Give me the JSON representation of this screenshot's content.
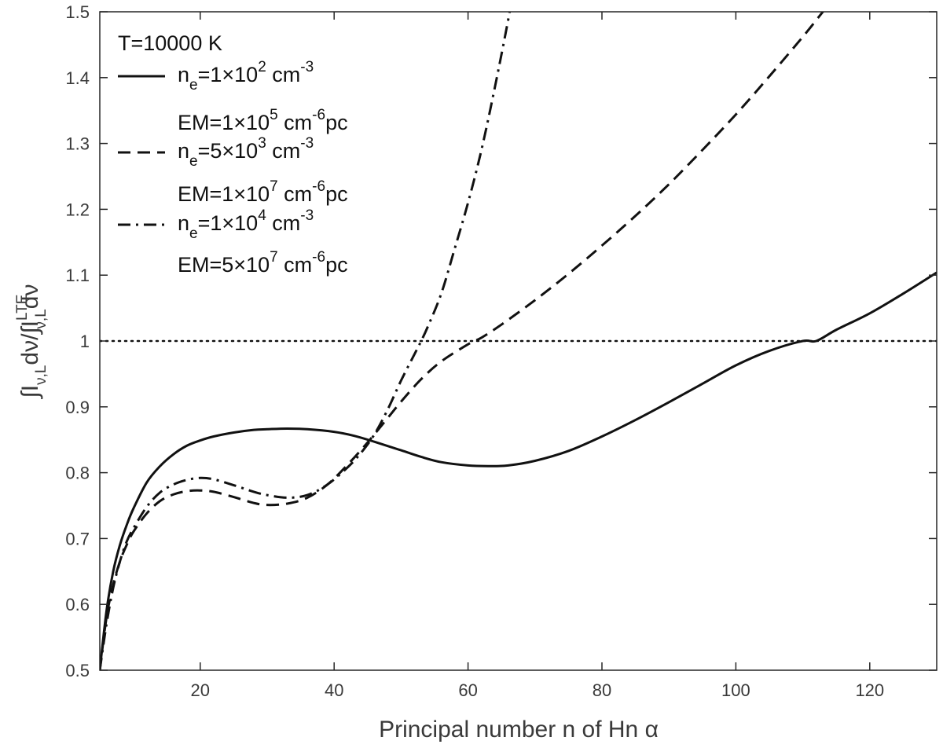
{
  "chart_data": {
    "type": "line",
    "xlabel": "Principal number n of Hn α",
    "ylabel_parts": {
      "integral_1": "∫I",
      "sub_1": "ν,L",
      "d_1": "dν/∫I",
      "sup_2": "LTE",
      "sub_2": "ν,L",
      "d_2": "dν"
    },
    "xlim": [
      5,
      130
    ],
    "ylim": [
      0.5,
      1.5
    ],
    "xticks": [
      20,
      40,
      60,
      80,
      100,
      120
    ],
    "xtick_labels": [
      "20",
      "40",
      "60",
      "80",
      "100",
      "120"
    ],
    "yticks": [
      0.5,
      0.6,
      0.7,
      0.8,
      0.9,
      1.0,
      1.1,
      1.2,
      1.3,
      1.4,
      1.5
    ],
    "ytick_labels": [
      "0.5",
      "0.6",
      "0.7",
      "0.8",
      "0.9",
      "1",
      "1.1",
      "1.2",
      "1.3",
      "1.4",
      "1.5"
    ],
    "grid": false,
    "legend_position": "top-left",
    "reference_line": {
      "y": 1.0,
      "style": "dotted"
    },
    "legend": {
      "title": "T=10000 K",
      "entries": [
        {
          "style": "solid",
          "ne_base": "n",
          "ne_sub": "e",
          "ne_mid": "=1×10",
          "ne_exp": "2",
          "ne_unit": " cm",
          "ne_unit_exp": "-3",
          "em_mid": "EM=1×10",
          "em_exp": "5",
          "em_unit": " cm",
          "em_unit_exp": "-6",
          "em_tail": "pc"
        },
        {
          "style": "dashed",
          "ne_base": "n",
          "ne_sub": "e",
          "ne_mid": "=5×10",
          "ne_exp": "3",
          "ne_unit": " cm",
          "ne_unit_exp": "-3",
          "em_mid": "EM=1×10",
          "em_exp": "7",
          "em_unit": " cm",
          "em_unit_exp": "-6",
          "em_tail": "pc"
        },
        {
          "style": "dashdot",
          "ne_base": "n",
          "ne_sub": "e",
          "ne_mid": "=1×10",
          "ne_exp": "4",
          "ne_unit": " cm",
          "ne_unit_exp": "-3",
          "em_mid": "EM=5×10",
          "em_exp": "7",
          "em_unit": " cm",
          "em_unit_exp": "-6",
          "em_tail": "pc"
        }
      ]
    },
    "series": [
      {
        "style": "solid",
        "x": [
          5,
          6,
          7,
          8,
          9,
          10,
          12,
          14,
          16,
          18,
          20,
          22,
          25,
          28,
          30,
          33,
          36,
          40,
          43,
          46,
          50,
          53,
          56,
          60,
          63,
          66,
          70,
          75,
          80,
          85,
          90,
          95,
          100,
          105,
          110,
          112,
          115,
          120,
          125,
          130
        ],
        "y": [
          0.5,
          0.59,
          0.65,
          0.69,
          0.72,
          0.745,
          0.785,
          0.81,
          0.828,
          0.841,
          0.849,
          0.855,
          0.861,
          0.865,
          0.866,
          0.867,
          0.866,
          0.862,
          0.856,
          0.847,
          0.834,
          0.824,
          0.816,
          0.811,
          0.81,
          0.811,
          0.818,
          0.833,
          0.855,
          0.88,
          0.907,
          0.935,
          0.963,
          0.985,
          1.0,
          1.0,
          1.017,
          1.042,
          1.072,
          1.104
        ]
      },
      {
        "style": "dashed",
        "x": [
          5,
          6,
          7,
          8,
          9,
          10,
          12,
          14,
          16,
          18,
          20,
          22,
          25,
          28,
          30,
          33,
          36,
          39,
          42,
          45,
          48,
          50,
          53,
          56,
          60,
          62,
          65,
          70,
          75,
          80,
          85,
          90,
          95,
          100,
          105,
          110,
          113,
          115
        ],
        "y": [
          0.5,
          0.58,
          0.63,
          0.665,
          0.69,
          0.71,
          0.738,
          0.757,
          0.767,
          0.772,
          0.773,
          0.771,
          0.763,
          0.754,
          0.751,
          0.753,
          0.762,
          0.782,
          0.812,
          0.846,
          0.883,
          0.908,
          0.942,
          0.969,
          0.995,
          1.005,
          1.025,
          1.062,
          1.102,
          1.145,
          1.19,
          1.238,
          1.29,
          1.344,
          1.402,
          1.462,
          1.5,
          1.525
        ]
      },
      {
        "style": "dashdot",
        "x": [
          5,
          6,
          7,
          8,
          9,
          10,
          12,
          14,
          16,
          18,
          20,
          22,
          25,
          28,
          30,
          33,
          36,
          39,
          42,
          44,
          46,
          48,
          50,
          52,
          53,
          54,
          56,
          58,
          60,
          62,
          64,
          66,
          66.5
        ],
        "y": [
          0.5,
          0.57,
          0.625,
          0.665,
          0.695,
          0.715,
          0.748,
          0.77,
          0.782,
          0.789,
          0.792,
          0.79,
          0.781,
          0.771,
          0.766,
          0.762,
          0.766,
          0.782,
          0.808,
          0.83,
          0.858,
          0.896,
          0.94,
          0.98,
          1.0,
          1.022,
          1.072,
          1.14,
          1.21,
          1.29,
          1.385,
          1.488,
          1.52
        ]
      }
    ]
  }
}
